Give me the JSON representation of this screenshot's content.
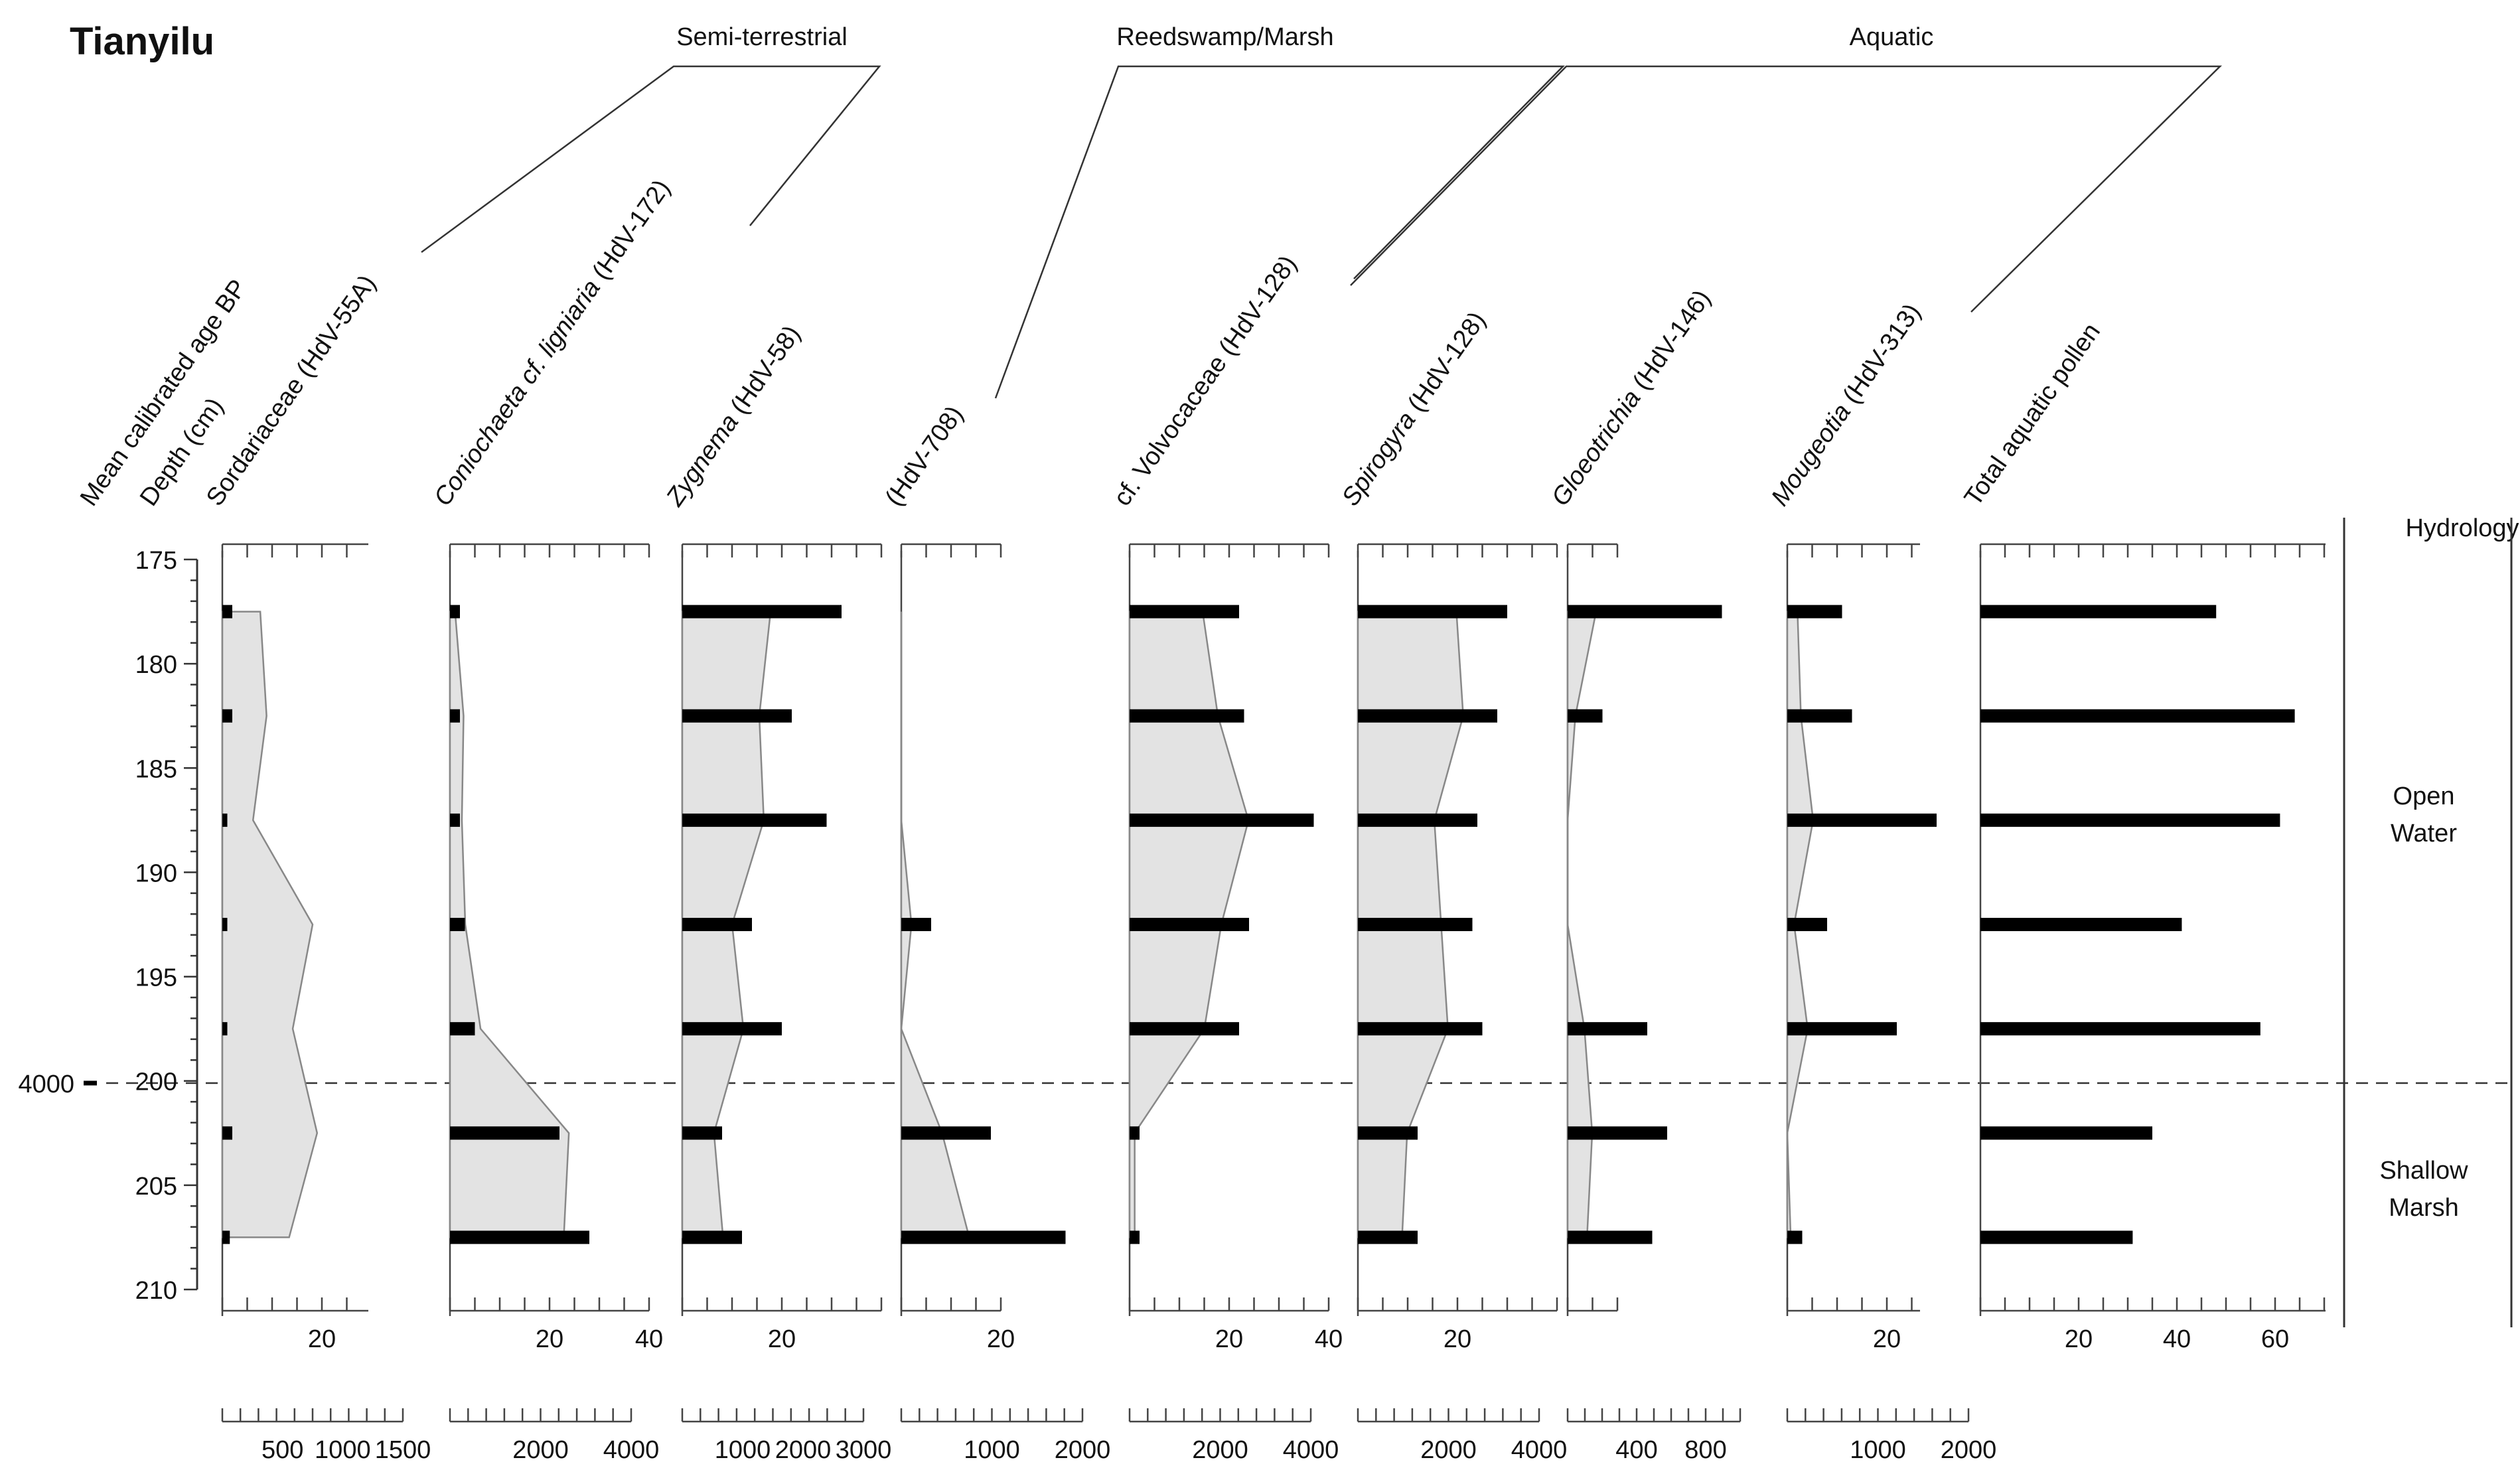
{
  "site_title": "Tianyilu",
  "chart_data": {
    "type": "stratigraphic-diagram",
    "title": "Tianyilu",
    "left_axis": {
      "age_label": "Mean calibrated age BP",
      "depth_label": "Depth (cm)",
      "depth_range": [
        175,
        210
      ],
      "depth_ticks": [
        "175",
        "180",
        "185",
        "190",
        "195",
        "200",
        "205",
        "210"
      ],
      "age_marker": {
        "label": "4000",
        "depth": 200
      }
    },
    "sample_depths": [
      177.5,
      182.5,
      187.5,
      192.5,
      197.5,
      202.5,
      207.5
    ],
    "groups": [
      {
        "label": "Semi-terrestrial",
        "columns": [
          0,
          1
        ]
      },
      {
        "label": "Reedswamp/Marsh",
        "columns": [
          2,
          3
        ]
      },
      {
        "label": "Aquatic",
        "columns": [
          4,
          5,
          6,
          7
        ]
      }
    ],
    "series": [
      {
        "name": "Sordariaceae",
        "name_suffix": " (HdV-55A)",
        "italic": false,
        "percent": [
          2,
          2,
          1,
          1,
          1,
          2,
          1.5
        ],
        "conc": [
          420,
          490,
          340,
          1000,
          780,
          1050,
          740
        ],
        "pct_ticks": [
          "20"
        ],
        "conc_ticks": [
          "500",
          "1000",
          "1500"
        ],
        "conc_max": 1500
      },
      {
        "name": "Coniochaeta cf. ligniaria",
        "name_suffix": " (HdV-172)",
        "italic": true,
        "percent": [
          2,
          2,
          2,
          3,
          5,
          22,
          28
        ],
        "conc": [
          150,
          400,
          350,
          450,
          900,
          3500,
          3350
        ],
        "pct_ticks": [
          "20",
          "40"
        ],
        "conc_ticks": [
          "2000",
          "4000"
        ],
        "conc_max": 4000
      },
      {
        "name": "Zygnema",
        "name_suffix": " (HdV-58)",
        "italic": true,
        "percent": [
          32,
          22,
          29,
          14,
          20,
          8,
          12
        ],
        "conc": [
          1950,
          1700,
          1800,
          1100,
          1350,
          700,
          900
        ],
        "pct_ticks": [
          "20"
        ],
        "conc_ticks": [
          "1000",
          "2000",
          "3000"
        ],
        "conc_max": 3000
      },
      {
        "name": "",
        "name_suffix": "(HdV-708)",
        "italic": false,
        "percent": [
          0,
          0,
          0,
          6,
          0,
          18,
          33
        ],
        "conc": [
          0,
          0,
          0,
          150,
          0,
          600,
          1000
        ],
        "pct_ticks": [
          "20"
        ],
        "conc_ticks": [
          "1000",
          "2000"
        ],
        "conc_max": 2000
      },
      {
        "name": "cf. Volvocaceae",
        "name_suffix": " (HdV-128)",
        "italic": false,
        "percent": [
          22,
          23,
          37,
          24,
          22,
          2,
          2
        ],
        "conc": [
          2150,
          2600,
          3500,
          2700,
          2200,
          150,
          150
        ],
        "pct_ticks": [
          "20",
          "40"
        ],
        "conc_ticks": [
          "2000",
          "4000"
        ],
        "conc_max": 4000
      },
      {
        "name": "Spirogyra",
        "name_suffix": " (HdV-128)",
        "italic": true,
        "percent": [
          30,
          28,
          24,
          23,
          25,
          12,
          12
        ],
        "conc": [
          2900,
          3100,
          2250,
          2450,
          2650,
          1450,
          1300
        ],
        "pct_ticks": [
          "20"
        ],
        "conc_ticks": [
          "2000",
          "4000"
        ],
        "conc_max": 4000
      },
      {
        "name": "Gloeotrichia",
        "name_suffix": " (HdV-146)",
        "italic": true,
        "percent": [
          31,
          7,
          0,
          0,
          16,
          20,
          17
        ],
        "conc": [
          220,
          60,
          0,
          0,
          130,
          190,
          150
        ],
        "pct_ticks": [],
        "conc_ticks": [
          "400",
          "800"
        ],
        "conc_max": 1000
      },
      {
        "name": "Mougeotia",
        "name_suffix": " (HdV-313)",
        "italic": true,
        "percent": [
          11,
          13,
          30,
          8,
          22,
          0,
          3
        ],
        "conc": [
          150,
          200,
          380,
          100,
          300,
          0,
          50
        ],
        "pct_ticks": [
          "20"
        ],
        "conc_ticks": [
          "1000",
          "2000"
        ],
        "conc_max": 2000
      }
    ],
    "total_aquatic_pollen": {
      "name": "Total aquatic pollen",
      "values": [
        48,
        64,
        61,
        41,
        57,
        35,
        31
      ],
      "ticks": [
        "20",
        "40",
        "60"
      ]
    },
    "hydrology": {
      "label": "Hydrology",
      "zones": [
        {
          "line1": "Open",
          "line2": "Water"
        },
        {
          "line1": "Shallow",
          "line2": "Marsh"
        }
      ]
    }
  }
}
